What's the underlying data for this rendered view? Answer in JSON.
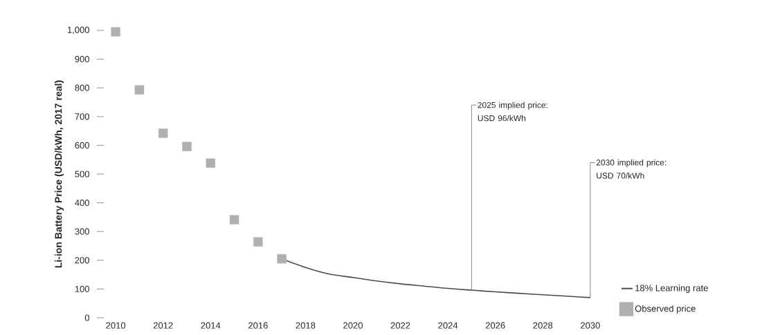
{
  "chart_data": {
    "type": "scatter",
    "ylabel": "Li-ion Battery Price (USD/kWh, 2017 real)",
    "xlim": [
      2010,
      2030
    ],
    "xticks": [
      2010,
      2012,
      2014,
      2016,
      2018,
      2020,
      2022,
      2024,
      2026,
      2028,
      2030
    ],
    "ylim": [
      0,
      1000
    ],
    "yticks": [
      0,
      100,
      200,
      300,
      400,
      500,
      600,
      700,
      800,
      900,
      {
        "value": 1000,
        "label": "1,000"
      }
    ],
    "series": [
      {
        "name": "18% Learning rate",
        "type": "line",
        "color": "#4a4a4a",
        "marker": "none",
        "line_style": "solid",
        "x": [
          2017,
          2018,
          2019,
          2020,
          2021,
          2022,
          2023,
          2024,
          2025,
          2026,
          2027,
          2028,
          2029,
          2030
        ],
        "values": [
          205,
          175,
          152,
          140,
          128,
          118,
          110,
          102,
          96,
          90,
          85,
          80,
          75,
          70
        ]
      },
      {
        "name": "Observed price",
        "color": "#b0b0b0",
        "marker": "square",
        "x": [
          2010,
          2011,
          2012,
          2013,
          2014,
          2015,
          2016,
          2017
        ],
        "values": [
          995,
          793,
          642,
          596,
          538,
          341,
          264,
          205
        ]
      }
    ],
    "annotations": [
      {
        "text": "2025 implied price: USD 96/kWh",
        "x": 2025,
        "y": 96
      },
      {
        "text": "2030 implied price: USD 70/kWh",
        "x": 2030,
        "y": 70
      }
    ],
    "legend": "bottom right"
  }
}
